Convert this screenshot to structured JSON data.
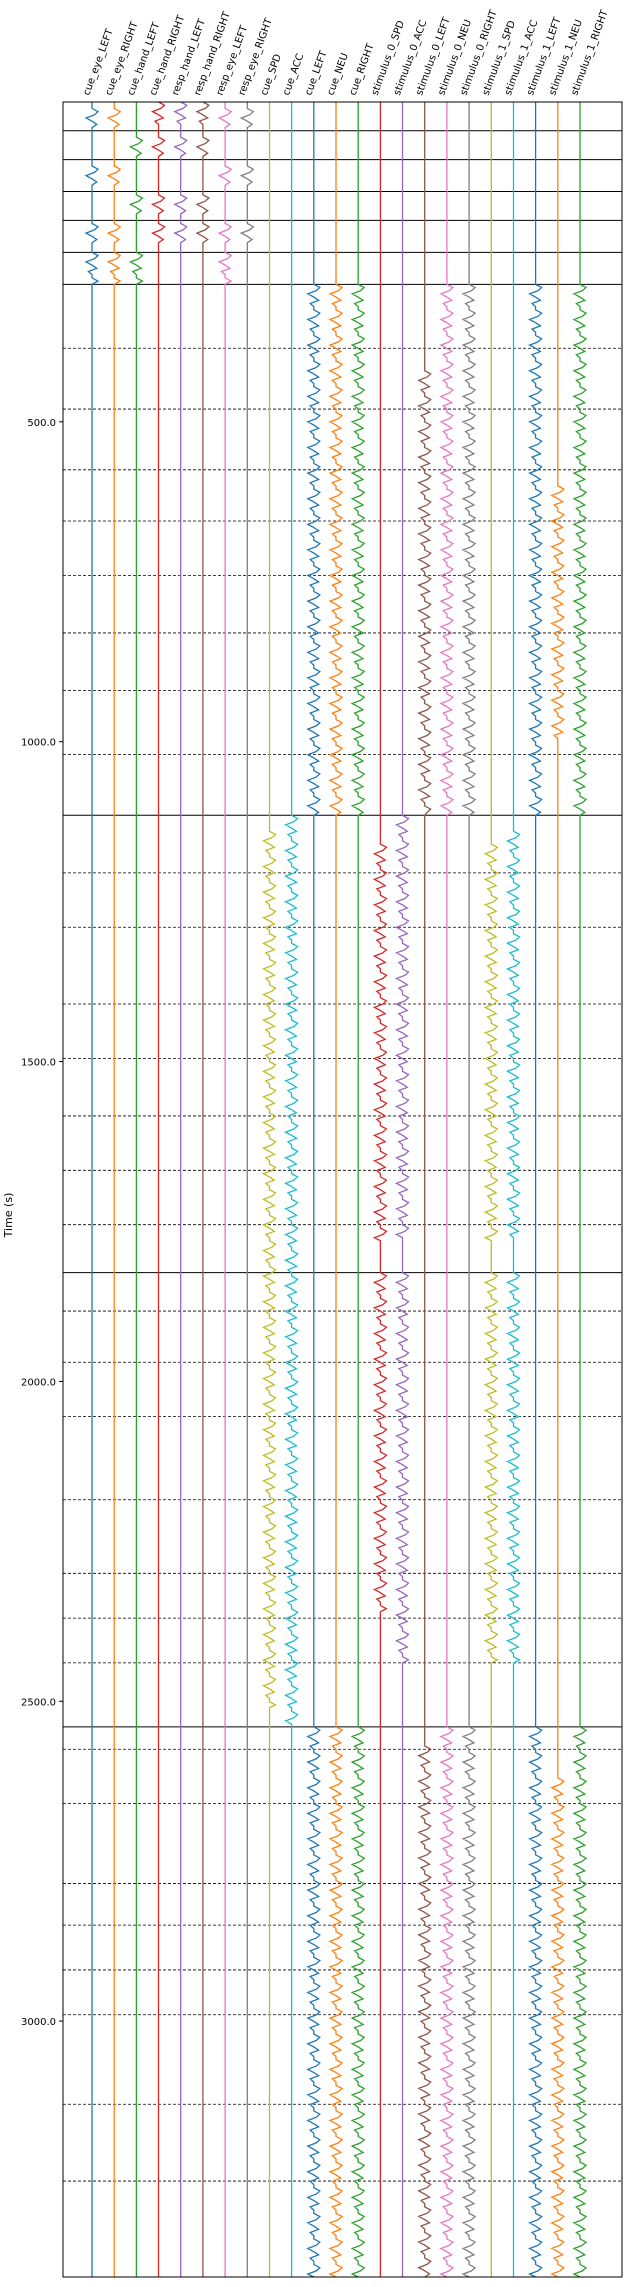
{
  "chart_data": {
    "type": "line",
    "title": "",
    "xlabel": "",
    "ylabel": "Time (s)",
    "ylim": [
      0,
      3400
    ],
    "y_inverted": true,
    "grid": false,
    "yticks": [
      {
        "value": 500.0,
        "label": "500.0"
      },
      {
        "value": 1000.0,
        "label": "1000.0"
      },
      {
        "value": 1500.0,
        "label": "1500.0"
      },
      {
        "value": 2000.0,
        "label": "2000.0"
      },
      {
        "value": 2500.0,
        "label": "2500.0"
      },
      {
        "value": 3000.0,
        "label": "3000.0"
      }
    ],
    "block_boundaries_solid": [
      0,
      45,
      90,
      140,
      185,
      235,
      285,
      1115,
      1830,
      2540
    ],
    "trial_boundaries_dashed": [
      385,
      480,
      575,
      655,
      740,
      830,
      920,
      1020,
      1205,
      1290,
      1410,
      1495,
      1585,
      1670,
      1755,
      1890,
      1970,
      2055,
      2185,
      2300,
      2370,
      2440,
      2575,
      2660,
      2785,
      2850,
      2920,
      2990,
      3130,
      3250
    ],
    "series": [
      {
        "name": "cue_eye_LEFT",
        "color": "#1f77b4",
        "bursts": [
          [
            10,
            40
          ],
          [
            100,
            130
          ],
          [
            190,
            220
          ],
          [
            235,
            285
          ]
        ]
      },
      {
        "name": "cue_eye_RIGHT",
        "color": "#ff7f0e",
        "bursts": [
          [
            10,
            40
          ],
          [
            100,
            130
          ],
          [
            190,
            220
          ],
          [
            235,
            285
          ]
        ]
      },
      {
        "name": "cue_hand_LEFT",
        "color": "#2ca02c",
        "bursts": [
          [
            55,
            85
          ],
          [
            145,
            175
          ],
          [
            235,
            285
          ]
        ]
      },
      {
        "name": "cue_hand_RIGHT",
        "color": "#d62728",
        "bursts": [
          [
            0,
            40
          ],
          [
            55,
            85
          ],
          [
            145,
            175
          ],
          [
            190,
            220
          ]
        ]
      },
      {
        "name": "resp_hand_LEFT",
        "color": "#9467bd",
        "bursts": [
          [
            0,
            40
          ],
          [
            55,
            85
          ],
          [
            145,
            175
          ],
          [
            190,
            220
          ]
        ]
      },
      {
        "name": "resp_hand_RIGHT",
        "color": "#8c564b",
        "bursts": [
          [
            0,
            40
          ],
          [
            55,
            85
          ],
          [
            145,
            175
          ],
          [
            190,
            220
          ]
        ]
      },
      {
        "name": "resp_eye_LEFT",
        "color": "#e377c2",
        "bursts": [
          [
            10,
            40
          ],
          [
            100,
            130
          ],
          [
            190,
            220
          ],
          [
            235,
            285
          ]
        ]
      },
      {
        "name": "resp_eye_RIGHT",
        "color": "#7f7f7f",
        "bursts": [
          [
            10,
            40
          ],
          [
            100,
            130
          ],
          [
            190,
            220
          ]
        ]
      },
      {
        "name": "cue_SPD",
        "color": "#bcbd22",
        "bursts": [
          [
            1140,
            2510
          ]
        ]
      },
      {
        "name": "cue_ACC",
        "color": "#17becf",
        "bursts": [
          [
            1115,
            2540
          ]
        ]
      },
      {
        "name": "cue_LEFT",
        "color": "#1f77b4",
        "bursts": [
          [
            285,
            1115
          ],
          [
            2540,
            3400
          ]
        ]
      },
      {
        "name": "cue_NEU",
        "color": "#ff7f0e",
        "bursts": [
          [
            285,
            1115
          ],
          [
            2540,
            3400
          ]
        ]
      },
      {
        "name": "cue_RIGHT",
        "color": "#2ca02c",
        "bursts": [
          [
            285,
            1115
          ],
          [
            2540,
            3400
          ]
        ]
      },
      {
        "name": "stimulus_0_SPD",
        "color": "#d62728",
        "bursts": [
          [
            1160,
            1780
          ],
          [
            1830,
            2360
          ]
        ]
      },
      {
        "name": "stimulus_0_ACC",
        "color": "#9467bd",
        "bursts": [
          [
            1115,
            1780
          ],
          [
            1830,
            2440
          ]
        ]
      },
      {
        "name": "stimulus_0_LEFT",
        "color": "#8c564b",
        "bursts": [
          [
            420,
            1115
          ],
          [
            2570,
            3400
          ]
        ]
      },
      {
        "name": "stimulus_0_NEU",
        "color": "#e377c2",
        "bursts": [
          [
            285,
            1115
          ],
          [
            2540,
            3400
          ]
        ]
      },
      {
        "name": "stimulus_0_RIGHT",
        "color": "#7f7f7f",
        "bursts": [
          [
            285,
            1115
          ],
          [
            2540,
            3400
          ]
        ]
      },
      {
        "name": "stimulus_1_SPD",
        "color": "#bcbd22",
        "bursts": [
          [
            1160,
            1780
          ],
          [
            1830,
            2440
          ]
        ]
      },
      {
        "name": "stimulus_1_ACC",
        "color": "#17becf",
        "bursts": [
          [
            1140,
            1780
          ],
          [
            1830,
            2440
          ]
        ]
      },
      {
        "name": "stimulus_1_LEFT",
        "color": "#1f77b4",
        "bursts": [
          [
            285,
            1115
          ],
          [
            2540,
            3400
          ]
        ]
      },
      {
        "name": "stimulus_1_NEU",
        "color": "#ff7f0e",
        "bursts": [
          [
            600,
            1000
          ],
          [
            2620,
            3400
          ]
        ]
      },
      {
        "name": "stimulus_1_RIGHT",
        "color": "#2ca02c",
        "bursts": [
          [
            285,
            1115
          ],
          [
            2540,
            3400
          ]
        ]
      }
    ]
  }
}
